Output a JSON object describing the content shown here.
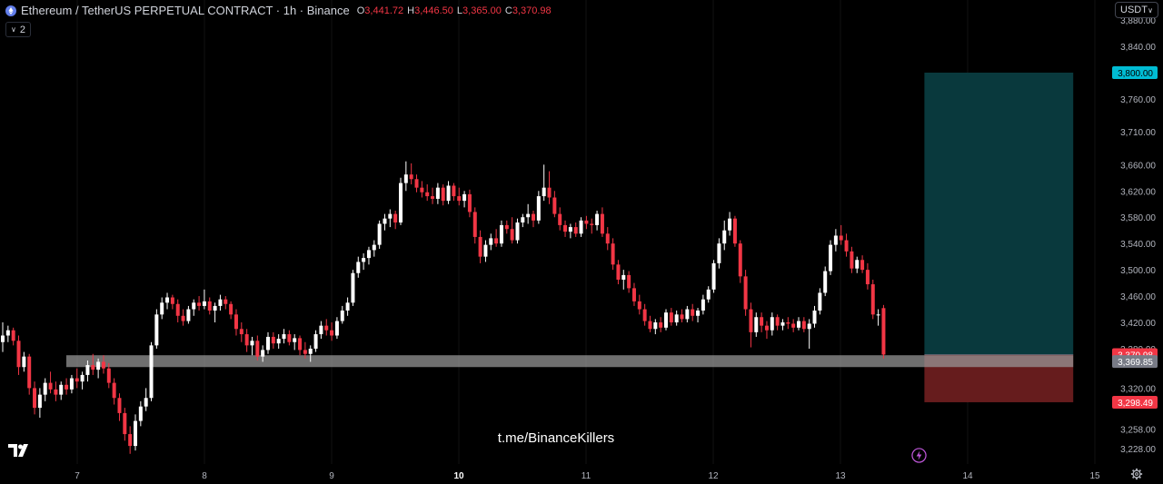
{
  "header": {
    "symbol_title": "Ethereum / TetherUS PERPETUAL CONTRACT · 1h · Binance",
    "ohlc": [
      {
        "key": "O",
        "value": "3,441.72"
      },
      {
        "key": "H",
        "value": "3,446.50"
      },
      {
        "key": "L",
        "value": "3,365.00"
      },
      {
        "key": "C",
        "value": "3,370.98"
      }
    ],
    "indicator_count": "2"
  },
  "currency_selector": "USDT",
  "watermark": "t.me/BinanceKillers",
  "colors": {
    "up": "#ffffff",
    "down": "#f23645",
    "target": "#00bcd4",
    "stop": "#f23645",
    "background": "#000000"
  },
  "chart_data": {
    "type": "candlestick",
    "x_tick_labels": [
      "7",
      "8",
      "9",
      "10",
      "11",
      "12",
      "13",
      "14",
      "15"
    ],
    "y_tick_labels": [
      "3,228.00",
      "3,258.00",
      "3,320.00",
      "3,380.00",
      "3,420.00",
      "3,460.00",
      "3,500.00",
      "3,540.00",
      "3,580.00",
      "3,620.00",
      "3,660.00",
      "3,710.00",
      "3,760.00",
      "3,800.00",
      "3,840.00",
      "3,880.00"
    ],
    "price_labels": [
      {
        "label": "3,800.00",
        "price": 3800,
        "color": "#00bcd4"
      },
      {
        "label": "3,370.98",
        "price": 3370.98,
        "color": "#f23645"
      },
      {
        "label": "3,369.85",
        "price": 3360.5,
        "color": "#787b86"
      },
      {
        "label": "3,298.49",
        "price": 3298.49,
        "color": "#f23645"
      }
    ],
    "support_zone": {
      "from_price": 3352,
      "to_price": 3370
    },
    "long_position": {
      "entry": 3370.98,
      "target": 3800.0,
      "stop": 3298.49,
      "start_day": 13.66,
      "end_day": 14.83
    },
    "candles": [
      {
        "o": 3390,
        "h": 3420,
        "l": 3375,
        "c": 3400
      },
      {
        "o": 3400,
        "h": 3415,
        "l": 3390,
        "c": 3408
      },
      {
        "o": 3408,
        "h": 3412,
        "l": 3385,
        "c": 3392
      },
      {
        "o": 3392,
        "h": 3400,
        "l": 3340,
        "c": 3352
      },
      {
        "o": 3352,
        "h": 3375,
        "l": 3345,
        "c": 3368
      },
      {
        "o": 3368,
        "h": 3372,
        "l": 3310,
        "c": 3320
      },
      {
        "o": 3320,
        "h": 3330,
        "l": 3280,
        "c": 3290
      },
      {
        "o": 3290,
        "h": 3320,
        "l": 3275,
        "c": 3310
      },
      {
        "o": 3310,
        "h": 3335,
        "l": 3300,
        "c": 3328
      },
      {
        "o": 3328,
        "h": 3345,
        "l": 3312,
        "c": 3318
      },
      {
        "o": 3318,
        "h": 3330,
        "l": 3300,
        "c": 3310
      },
      {
        "o": 3310,
        "h": 3330,
        "l": 3302,
        "c": 3325
      },
      {
        "o": 3325,
        "h": 3335,
        "l": 3310,
        "c": 3318
      },
      {
        "o": 3318,
        "h": 3340,
        "l": 3312,
        "c": 3335
      },
      {
        "o": 3335,
        "h": 3350,
        "l": 3320,
        "c": 3330
      },
      {
        "o": 3330,
        "h": 3345,
        "l": 3318,
        "c": 3340
      },
      {
        "o": 3340,
        "h": 3362,
        "l": 3330,
        "c": 3355
      },
      {
        "o": 3355,
        "h": 3372,
        "l": 3340,
        "c": 3348
      },
      {
        "o": 3348,
        "h": 3365,
        "l": 3335,
        "c": 3360
      },
      {
        "o": 3360,
        "h": 3370,
        "l": 3342,
        "c": 3350
      },
      {
        "o": 3350,
        "h": 3358,
        "l": 3320,
        "c": 3328
      },
      {
        "o": 3328,
        "h": 3335,
        "l": 3295,
        "c": 3305
      },
      {
        "o": 3305,
        "h": 3312,
        "l": 3270,
        "c": 3282
      },
      {
        "o": 3282,
        "h": 3290,
        "l": 3240,
        "c": 3250
      },
      {
        "o": 3250,
        "h": 3262,
        "l": 3220,
        "c": 3232
      },
      {
        "o": 3232,
        "h": 3280,
        "l": 3225,
        "c": 3270
      },
      {
        "o": 3270,
        "h": 3300,
        "l": 3262,
        "c": 3292
      },
      {
        "o": 3292,
        "h": 3320,
        "l": 3285,
        "c": 3305
      },
      {
        "o": 3305,
        "h": 3390,
        "l": 3300,
        "c": 3385
      },
      {
        "o": 3385,
        "h": 3440,
        "l": 3380,
        "c": 3432
      },
      {
        "o": 3432,
        "h": 3458,
        "l": 3425,
        "c": 3450
      },
      {
        "o": 3450,
        "h": 3465,
        "l": 3440,
        "c": 3458
      },
      {
        "o": 3458,
        "h": 3462,
        "l": 3440,
        "c": 3448
      },
      {
        "o": 3448,
        "h": 3455,
        "l": 3420,
        "c": 3430
      },
      {
        "o": 3430,
        "h": 3440,
        "l": 3415,
        "c": 3422
      },
      {
        "o": 3422,
        "h": 3445,
        "l": 3418,
        "c": 3440
      },
      {
        "o": 3440,
        "h": 3455,
        "l": 3430,
        "c": 3450
      },
      {
        "o": 3450,
        "h": 3460,
        "l": 3438,
        "c": 3445
      },
      {
        "o": 3445,
        "h": 3470,
        "l": 3440,
        "c": 3452
      },
      {
        "o": 3452,
        "h": 3458,
        "l": 3432,
        "c": 3438
      },
      {
        "o": 3438,
        "h": 3450,
        "l": 3420,
        "c": 3445
      },
      {
        "o": 3445,
        "h": 3462,
        "l": 3438,
        "c": 3455
      },
      {
        "o": 3455,
        "h": 3460,
        "l": 3440,
        "c": 3448
      },
      {
        "o": 3448,
        "h": 3452,
        "l": 3425,
        "c": 3432
      },
      {
        "o": 3432,
        "h": 3440,
        "l": 3400,
        "c": 3410
      },
      {
        "o": 3410,
        "h": 3420,
        "l": 3390,
        "c": 3402
      },
      {
        "o": 3402,
        "h": 3410,
        "l": 3375,
        "c": 3385
      },
      {
        "o": 3385,
        "h": 3398,
        "l": 3370,
        "c": 3392
      },
      {
        "o": 3392,
        "h": 3400,
        "l": 3362,
        "c": 3368
      },
      {
        "o": 3368,
        "h": 3385,
        "l": 3360,
        "c": 3378
      },
      {
        "o": 3378,
        "h": 3405,
        "l": 3372,
        "c": 3398
      },
      {
        "o": 3398,
        "h": 3405,
        "l": 3380,
        "c": 3388
      },
      {
        "o": 3388,
        "h": 3402,
        "l": 3380,
        "c": 3395
      },
      {
        "o": 3395,
        "h": 3410,
        "l": 3388,
        "c": 3402
      },
      {
        "o": 3402,
        "h": 3408,
        "l": 3385,
        "c": 3390
      },
      {
        "o": 3390,
        "h": 3402,
        "l": 3378,
        "c": 3396
      },
      {
        "o": 3396,
        "h": 3400,
        "l": 3370,
        "c": 3378
      },
      {
        "o": 3378,
        "h": 3390,
        "l": 3365,
        "c": 3372
      },
      {
        "o": 3372,
        "h": 3385,
        "l": 3360,
        "c": 3380
      },
      {
        "o": 3380,
        "h": 3408,
        "l": 3375,
        "c": 3402
      },
      {
        "o": 3402,
        "h": 3422,
        "l": 3395,
        "c": 3415
      },
      {
        "o": 3415,
        "h": 3425,
        "l": 3400,
        "c": 3408
      },
      {
        "o": 3408,
        "h": 3420,
        "l": 3392,
        "c": 3400
      },
      {
        "o": 3400,
        "h": 3428,
        "l": 3395,
        "c": 3422
      },
      {
        "o": 3422,
        "h": 3445,
        "l": 3418,
        "c": 3438
      },
      {
        "o": 3438,
        "h": 3458,
        "l": 3430,
        "c": 3450
      },
      {
        "o": 3450,
        "h": 3500,
        "l": 3445,
        "c": 3495
      },
      {
        "o": 3495,
        "h": 3520,
        "l": 3488,
        "c": 3512
      },
      {
        "o": 3512,
        "h": 3525,
        "l": 3500,
        "c": 3518
      },
      {
        "o": 3518,
        "h": 3535,
        "l": 3508,
        "c": 3530
      },
      {
        "o": 3530,
        "h": 3545,
        "l": 3520,
        "c": 3538
      },
      {
        "o": 3538,
        "h": 3575,
        "l": 3532,
        "c": 3570
      },
      {
        "o": 3570,
        "h": 3585,
        "l": 3560,
        "c": 3578
      },
      {
        "o": 3578,
        "h": 3592,
        "l": 3565,
        "c": 3585
      },
      {
        "o": 3585,
        "h": 3590,
        "l": 3562,
        "c": 3572
      },
      {
        "o": 3572,
        "h": 3640,
        "l": 3568,
        "c": 3632
      },
      {
        "o": 3632,
        "h": 3665,
        "l": 3620,
        "c": 3645
      },
      {
        "o": 3645,
        "h": 3662,
        "l": 3630,
        "c": 3638
      },
      {
        "o": 3638,
        "h": 3645,
        "l": 3618,
        "c": 3625
      },
      {
        "o": 3625,
        "h": 3635,
        "l": 3610,
        "c": 3618
      },
      {
        "o": 3618,
        "h": 3630,
        "l": 3605,
        "c": 3612
      },
      {
        "o": 3612,
        "h": 3625,
        "l": 3600,
        "c": 3608
      },
      {
        "o": 3608,
        "h": 3632,
        "l": 3600,
        "c": 3625
      },
      {
        "o": 3625,
        "h": 3630,
        "l": 3598,
        "c": 3605
      },
      {
        "o": 3605,
        "h": 3635,
        "l": 3600,
        "c": 3628
      },
      {
        "o": 3628,
        "h": 3632,
        "l": 3605,
        "c": 3612
      },
      {
        "o": 3612,
        "h": 3625,
        "l": 3598,
        "c": 3605
      },
      {
        "o": 3605,
        "h": 3620,
        "l": 3595,
        "c": 3615
      },
      {
        "o": 3615,
        "h": 3622,
        "l": 3580,
        "c": 3588
      },
      {
        "o": 3588,
        "h": 3595,
        "l": 3540,
        "c": 3550
      },
      {
        "o": 3550,
        "h": 3560,
        "l": 3510,
        "c": 3520
      },
      {
        "o": 3520,
        "h": 3545,
        "l": 3512,
        "c": 3538
      },
      {
        "o": 3538,
        "h": 3555,
        "l": 3530,
        "c": 3548
      },
      {
        "o": 3548,
        "h": 3562,
        "l": 3535,
        "c": 3540
      },
      {
        "o": 3540,
        "h": 3575,
        "l": 3535,
        "c": 3568
      },
      {
        "o": 3568,
        "h": 3575,
        "l": 3555,
        "c": 3562
      },
      {
        "o": 3562,
        "h": 3580,
        "l": 3540,
        "c": 3545
      },
      {
        "o": 3545,
        "h": 3578,
        "l": 3540,
        "c": 3572
      },
      {
        "o": 3572,
        "h": 3585,
        "l": 3565,
        "c": 3580
      },
      {
        "o": 3580,
        "h": 3600,
        "l": 3570,
        "c": 3585
      },
      {
        "o": 3585,
        "h": 3590,
        "l": 3565,
        "c": 3575
      },
      {
        "o": 3575,
        "h": 3620,
        "l": 3570,
        "c": 3612
      },
      {
        "o": 3612,
        "h": 3660,
        "l": 3605,
        "c": 3625
      },
      {
        "o": 3625,
        "h": 3650,
        "l": 3600,
        "c": 3610
      },
      {
        "o": 3610,
        "h": 3620,
        "l": 3580,
        "c": 3585
      },
      {
        "o": 3585,
        "h": 3595,
        "l": 3560,
        "c": 3568
      },
      {
        "o": 3568,
        "h": 3575,
        "l": 3550,
        "c": 3558
      },
      {
        "o": 3558,
        "h": 3570,
        "l": 3548,
        "c": 3565
      },
      {
        "o": 3565,
        "h": 3572,
        "l": 3550,
        "c": 3555
      },
      {
        "o": 3555,
        "h": 3580,
        "l": 3550,
        "c": 3575
      },
      {
        "o": 3575,
        "h": 3582,
        "l": 3562,
        "c": 3570
      },
      {
        "o": 3570,
        "h": 3578,
        "l": 3555,
        "c": 3568
      },
      {
        "o": 3568,
        "h": 3590,
        "l": 3560,
        "c": 3585
      },
      {
        "o": 3585,
        "h": 3595,
        "l": 3550,
        "c": 3555
      },
      {
        "o": 3555,
        "h": 3565,
        "l": 3530,
        "c": 3540
      },
      {
        "o": 3540,
        "h": 3548,
        "l": 3500,
        "c": 3508
      },
      {
        "o": 3508,
        "h": 3515,
        "l": 3478,
        "c": 3485
      },
      {
        "o": 3485,
        "h": 3500,
        "l": 3470,
        "c": 3492
      },
      {
        "o": 3492,
        "h": 3498,
        "l": 3465,
        "c": 3472
      },
      {
        "o": 3472,
        "h": 3480,
        "l": 3445,
        "c": 3452
      },
      {
        "o": 3452,
        "h": 3462,
        "l": 3432,
        "c": 3440
      },
      {
        "o": 3440,
        "h": 3448,
        "l": 3415,
        "c": 3422
      },
      {
        "o": 3422,
        "h": 3430,
        "l": 3405,
        "c": 3410
      },
      {
        "o": 3410,
        "h": 3425,
        "l": 3402,
        "c": 3420
      },
      {
        "o": 3420,
        "h": 3428,
        "l": 3405,
        "c": 3412
      },
      {
        "o": 3412,
        "h": 3440,
        "l": 3408,
        "c": 3435
      },
      {
        "o": 3435,
        "h": 3442,
        "l": 3415,
        "c": 3420
      },
      {
        "o": 3420,
        "h": 3438,
        "l": 3415,
        "c": 3432
      },
      {
        "o": 3432,
        "h": 3440,
        "l": 3420,
        "c": 3425
      },
      {
        "o": 3425,
        "h": 3445,
        "l": 3420,
        "c": 3440
      },
      {
        "o": 3440,
        "h": 3448,
        "l": 3422,
        "c": 3430
      },
      {
        "o": 3430,
        "h": 3442,
        "l": 3420,
        "c": 3438
      },
      {
        "o": 3438,
        "h": 3462,
        "l": 3432,
        "c": 3455
      },
      {
        "o": 3455,
        "h": 3475,
        "l": 3450,
        "c": 3470
      },
      {
        "o": 3470,
        "h": 3515,
        "l": 3465,
        "c": 3510
      },
      {
        "o": 3510,
        "h": 3548,
        "l": 3502,
        "c": 3540
      },
      {
        "o": 3540,
        "h": 3575,
        "l": 3530,
        "c": 3560
      },
      {
        "o": 3560,
        "h": 3588,
        "l": 3552,
        "c": 3578
      },
      {
        "o": 3578,
        "h": 3582,
        "l": 3535,
        "c": 3540
      },
      {
        "o": 3540,
        "h": 3545,
        "l": 3480,
        "c": 3490
      },
      {
        "o": 3490,
        "h": 3500,
        "l": 3430,
        "c": 3440
      },
      {
        "o": 3440,
        "h": 3450,
        "l": 3382,
        "c": 3405
      },
      {
        "o": 3405,
        "h": 3435,
        "l": 3398,
        "c": 3428
      },
      {
        "o": 3428,
        "h": 3435,
        "l": 3405,
        "c": 3415
      },
      {
        "o": 3415,
        "h": 3422,
        "l": 3395,
        "c": 3408
      },
      {
        "o": 3408,
        "h": 3435,
        "l": 3400,
        "c": 3428
      },
      {
        "o": 3428,
        "h": 3432,
        "l": 3408,
        "c": 3415
      },
      {
        "o": 3415,
        "h": 3425,
        "l": 3408,
        "c": 3420
      },
      {
        "o": 3420,
        "h": 3428,
        "l": 3410,
        "c": 3418
      },
      {
        "o": 3418,
        "h": 3425,
        "l": 3405,
        "c": 3412
      },
      {
        "o": 3412,
        "h": 3428,
        "l": 3408,
        "c": 3422
      },
      {
        "o": 3422,
        "h": 3428,
        "l": 3405,
        "c": 3410
      },
      {
        "o": 3410,
        "h": 3425,
        "l": 3380,
        "c": 3418
      },
      {
        "o": 3418,
        "h": 3445,
        "l": 3412,
        "c": 3438
      },
      {
        "o": 3438,
        "h": 3472,
        "l": 3432,
        "c": 3465
      },
      {
        "o": 3465,
        "h": 3505,
        "l": 3460,
        "c": 3498
      },
      {
        "o": 3498,
        "h": 3545,
        "l": 3492,
        "c": 3538
      },
      {
        "o": 3538,
        "h": 3562,
        "l": 3528,
        "c": 3552
      },
      {
        "o": 3552,
        "h": 3568,
        "l": 3538,
        "c": 3545
      },
      {
        "o": 3545,
        "h": 3555,
        "l": 3520,
        "c": 3528
      },
      {
        "o": 3528,
        "h": 3535,
        "l": 3495,
        "c": 3502
      },
      {
        "o": 3502,
        "h": 3520,
        "l": 3495,
        "c": 3515
      },
      {
        "o": 3515,
        "h": 3522,
        "l": 3495,
        "c": 3500
      },
      {
        "o": 3500,
        "h": 3510,
        "l": 3470,
        "c": 3478
      },
      {
        "o": 3478,
        "h": 3485,
        "l": 3425,
        "c": 3432
      },
      {
        "o": 3432,
        "h": 3440,
        "l": 3415,
        "c": 3432
      },
      {
        "o": 3441.72,
        "h": 3446.5,
        "l": 3365,
        "c": 3370.98
      }
    ]
  }
}
